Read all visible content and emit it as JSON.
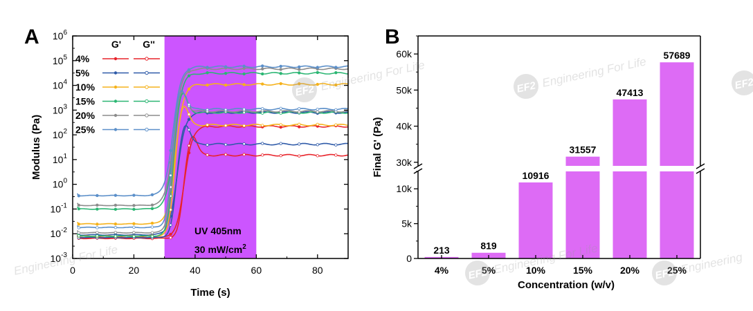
{
  "watermark": {
    "logo_text": "EF2",
    "tagline": "Engineering For Life",
    "tagline_short": "Engineering"
  },
  "panel_a": {
    "label": "A",
    "xlabel": "Time (s)",
    "ylabel": "Modulus (Pa)",
    "xticks": [
      "0",
      "20",
      "40",
      "60",
      "80"
    ],
    "yticks": [
      {
        "base": "10",
        "exp": "6"
      },
      {
        "base": "10",
        "exp": "5"
      },
      {
        "base": "10",
        "exp": "4"
      },
      {
        "base": "10",
        "exp": "3"
      },
      {
        "base": "10",
        "exp": "2"
      },
      {
        "base": "10",
        "exp": "1"
      },
      {
        "base": "10",
        "exp": "0"
      },
      {
        "base": "10",
        "exp": "-1"
      },
      {
        "base": "10",
        "exp": "-2"
      },
      {
        "base": "10",
        "exp": "-3"
      }
    ],
    "legend_header_g1": "G'",
    "legend_header_g2": "G''",
    "legend_labels": [
      "4%",
      "5%",
      "10%",
      "15%",
      "20%",
      "25%"
    ],
    "uv_line1": "UV 405nm",
    "uv_line2_main": "30 mW/cm",
    "uv_line2_sup": "2"
  },
  "panel_b": {
    "label": "B",
    "xlabel": "Concentration (w/v)",
    "ylabel": "Final G' (Pa)",
    "yticks_lower": [
      "0",
      "5k",
      "10k"
    ],
    "yticks_upper": [
      "30k",
      "40k",
      "50k",
      "60k"
    ]
  },
  "chart_data": [
    {
      "type": "line",
      "title": "",
      "xlabel": "Time (s)",
      "ylabel": "Modulus (Pa)",
      "xlim": [
        0,
        90
      ],
      "ylim": [
        0.001,
        1000000
      ],
      "yscale": "log",
      "uv_window": [
        30,
        60
      ],
      "uv_color": "#CC55FF",
      "series": [
        {
          "name": "4%",
          "color": "#E8232A",
          "g_prime": {
            "initial": 0.007,
            "final": 220
          },
          "g_double_prime": {
            "initial": 0.0065,
            "final": 15
          }
        },
        {
          "name": "5%",
          "color": "#2E5AA8",
          "g_prime": {
            "initial": 0.009,
            "final": 800
          },
          "g_double_prime": {
            "initial": 0.007,
            "final": 42
          }
        },
        {
          "name": "10%",
          "color": "#F5B21B",
          "g_prime": {
            "initial": 0.025,
            "final": 11000
          },
          "g_double_prime": {
            "initial": 0.008,
            "final": 250
          }
        },
        {
          "name": "15%",
          "color": "#2BB673",
          "g_prime": {
            "initial": 0.1,
            "final": 31000
          },
          "g_double_prime": {
            "initial": 0.008,
            "final": 800
          }
        },
        {
          "name": "20%",
          "color": "#8C8C8C",
          "g_prime": {
            "initial": 0.14,
            "final": 47000
          },
          "g_double_prime": {
            "initial": 0.011,
            "final": 900
          }
        },
        {
          "name": "25%",
          "color": "#5B8FC9",
          "g_prime": {
            "initial": 0.35,
            "final": 57000
          },
          "g_double_prime": {
            "initial": 0.018,
            "final": 1100
          }
        }
      ],
      "legend": "top-left",
      "grid": false
    },
    {
      "type": "bar",
      "title": "",
      "xlabel": "Concentration (w/v)",
      "ylabel": "Final G' (Pa)",
      "categories": [
        "4%",
        "5%",
        "10%",
        "15%",
        "20%",
        "25%"
      ],
      "values": [
        213,
        819,
        10916,
        31557,
        47413,
        57689
      ],
      "value_labels": [
        "213",
        "819",
        "10916",
        "31557",
        "47413",
        "57689"
      ],
      "bar_color": "#DD6BF5",
      "axis_break": {
        "lower": [
          0,
          12500
        ],
        "upper": [
          29000,
          65000
        ]
      },
      "grid": false
    }
  ]
}
